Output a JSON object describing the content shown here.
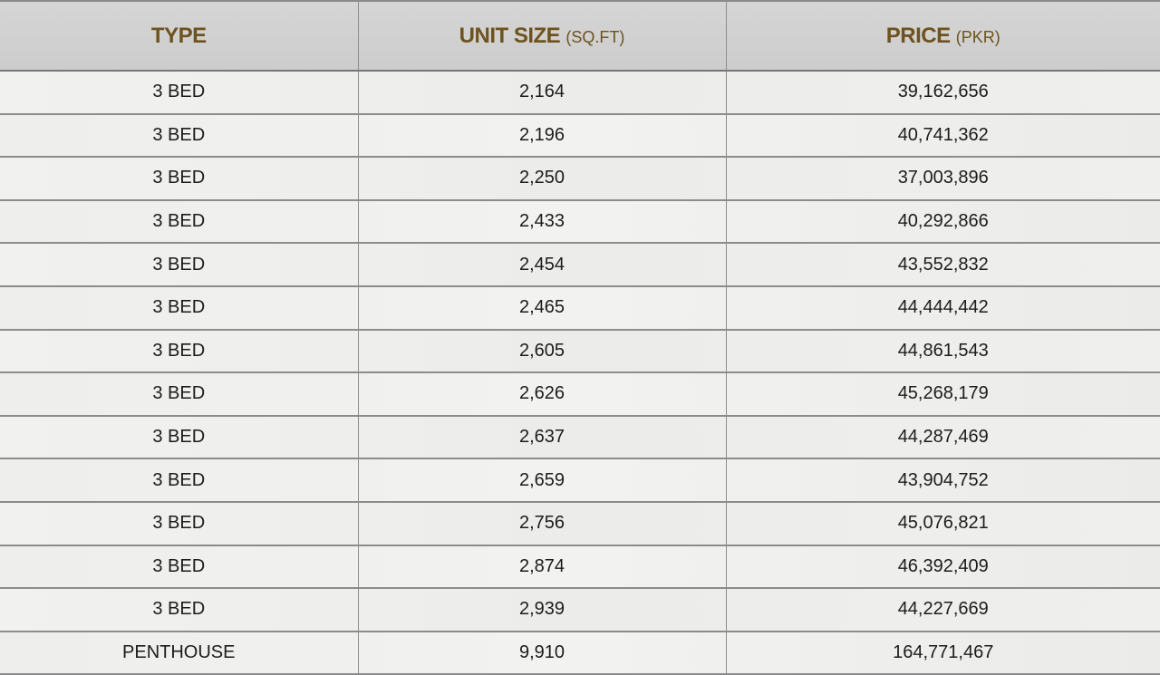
{
  "header": {
    "type": {
      "label": "TYPE"
    },
    "unit_size": {
      "label": "UNIT SIZE",
      "unit": "(SQ.FT)"
    },
    "price": {
      "label": "PRICE",
      "unit": "(PKR)"
    }
  },
  "colors": {
    "header_text": "#6e521f",
    "header_bg": "#d0d0d0",
    "row_bg": "#efefed"
  },
  "rows": [
    {
      "type": "3 BED",
      "size": "2,164",
      "price": "39,162,656"
    },
    {
      "type": "3 BED",
      "size": "2,196",
      "price": "40,741,362"
    },
    {
      "type": "3 BED",
      "size": "2,250",
      "price": "37,003,896"
    },
    {
      "type": "3 BED",
      "size": "2,433",
      "price": "40,292,866"
    },
    {
      "type": "3 BED",
      "size": "2,454",
      "price": "43,552,832"
    },
    {
      "type": "3 BED",
      "size": "2,465",
      "price": "44,444,442"
    },
    {
      "type": "3 BED",
      "size": "2,605",
      "price": "44,861,543"
    },
    {
      "type": "3 BED",
      "size": "2,626",
      "price": "45,268,179"
    },
    {
      "type": "3 BED",
      "size": "2,637",
      "price": "44,287,469"
    },
    {
      "type": "3 BED",
      "size": "2,659",
      "price": "43,904,752"
    },
    {
      "type": "3 BED",
      "size": "2,756",
      "price": "45,076,821"
    },
    {
      "type": "3 BED",
      "size": "2,874",
      "price": "46,392,409"
    },
    {
      "type": "3 BED",
      "size": "2,939",
      "price": "44,227,669"
    },
    {
      "type": "PENTHOUSE",
      "size": "9,910",
      "price": "164,771,467"
    }
  ]
}
